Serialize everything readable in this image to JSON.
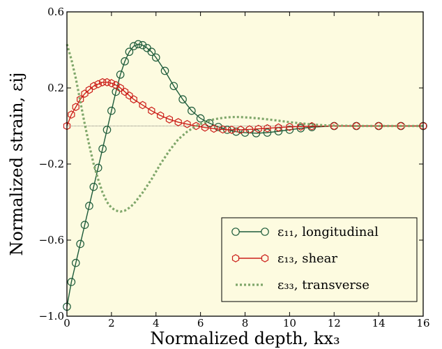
{
  "chart_data": {
    "type": "line",
    "xlabel": "Normalized depth, kx₃",
    "ylabel": "Normalized strain, εij",
    "xlim": [
      0,
      16
    ],
    "ylim": [
      -1.0,
      0.6
    ],
    "xticks": [
      "0",
      "2",
      "4",
      "6",
      "8",
      "10",
      "12",
      "14",
      "16"
    ],
    "yticks": [
      "−1.0",
      "−0.6",
      "−0.2",
      "0.2",
      "0.6"
    ],
    "grid": false,
    "zero_line": true,
    "legend_position": "lower-right",
    "background": "#fdfbe0",
    "series": [
      {
        "name": "ε₁₁, longitudinal",
        "color": "#1d5b3a",
        "marker": "circle",
        "x": [
          0,
          0.2,
          0.4,
          0.6,
          0.8,
          1.0,
          1.2,
          1.4,
          1.6,
          1.8,
          2.0,
          2.2,
          2.4,
          2.6,
          2.8,
          3.0,
          3.2,
          3.4,
          3.6,
          3.8,
          4.0,
          4.4,
          4.8,
          5.2,
          5.6,
          6.0,
          6.4,
          6.8,
          7.2,
          7.6,
          8.0,
          8.5,
          9.0,
          9.5,
          10.0,
          10.5,
          11.0,
          12.0,
          13.0,
          14.0,
          15.0,
          16.0
        ],
        "y": [
          -0.95,
          -0.82,
          -0.72,
          -0.62,
          -0.52,
          -0.42,
          -0.32,
          -0.22,
          -0.12,
          -0.02,
          0.08,
          0.18,
          0.27,
          0.34,
          0.39,
          0.42,
          0.43,
          0.425,
          0.41,
          0.39,
          0.36,
          0.29,
          0.21,
          0.14,
          0.08,
          0.04,
          0.015,
          -0.005,
          -0.02,
          -0.03,
          -0.035,
          -0.038,
          -0.035,
          -0.028,
          -0.02,
          -0.012,
          -0.006,
          0.0,
          0.0,
          0.0,
          0.0,
          0.0
        ]
      },
      {
        "name": "ε₁₃, shear",
        "color": "#cc1f1a",
        "marker": "hexagon",
        "x": [
          0,
          0.2,
          0.4,
          0.6,
          0.8,
          1.0,
          1.2,
          1.4,
          1.6,
          1.8,
          2.0,
          2.2,
          2.4,
          2.6,
          2.8,
          3.0,
          3.4,
          3.8,
          4.2,
          4.6,
          5.0,
          5.4,
          5.8,
          6.2,
          6.6,
          7.0,
          7.4,
          7.8,
          8.2,
          8.6,
          9.0,
          9.5,
          10.0,
          10.5,
          11.0,
          12.0,
          13.0,
          14.0,
          15.0,
          16.0
        ],
        "y": [
          0.0,
          0.06,
          0.1,
          0.14,
          0.17,
          0.19,
          0.21,
          0.22,
          0.23,
          0.23,
          0.225,
          0.215,
          0.2,
          0.18,
          0.16,
          0.14,
          0.11,
          0.08,
          0.055,
          0.035,
          0.02,
          0.01,
          0.0,
          -0.008,
          -0.014,
          -0.018,
          -0.02,
          -0.02,
          -0.018,
          -0.015,
          -0.012,
          -0.008,
          -0.005,
          -0.003,
          -0.001,
          0.0,
          0.0,
          0.0,
          0.0,
          0.0
        ]
      },
      {
        "name": "ε₃₃, transverse",
        "color": "#7fa66a",
        "marker": "none",
        "dashed": true,
        "x": [
          0,
          0.2,
          0.4,
          0.6,
          0.8,
          1.0,
          1.2,
          1.4,
          1.6,
          1.8,
          2.0,
          2.2,
          2.4,
          2.6,
          2.8,
          3.0,
          3.4,
          3.8,
          4.2,
          4.6,
          5.0,
          5.4,
          5.8,
          6.2,
          6.6,
          7.0,
          7.4,
          7.8,
          8.2,
          8.6,
          9.0,
          9.5,
          10.0,
          10.5,
          11.0,
          11.5,
          12.0,
          13.0,
          14.0,
          15.0,
          16.0
        ],
        "y": [
          0.43,
          0.35,
          0.25,
          0.13,
          0.01,
          -0.1,
          -0.2,
          -0.28,
          -0.35,
          -0.4,
          -0.43,
          -0.445,
          -0.45,
          -0.445,
          -0.43,
          -0.41,
          -0.35,
          -0.28,
          -0.2,
          -0.13,
          -0.07,
          -0.03,
          0.0,
          0.02,
          0.035,
          0.043,
          0.047,
          0.047,
          0.044,
          0.04,
          0.035,
          0.028,
          0.02,
          0.014,
          0.008,
          0.004,
          0.002,
          0.0,
          0.0,
          0.0,
          0.0
        ]
      }
    ]
  }
}
